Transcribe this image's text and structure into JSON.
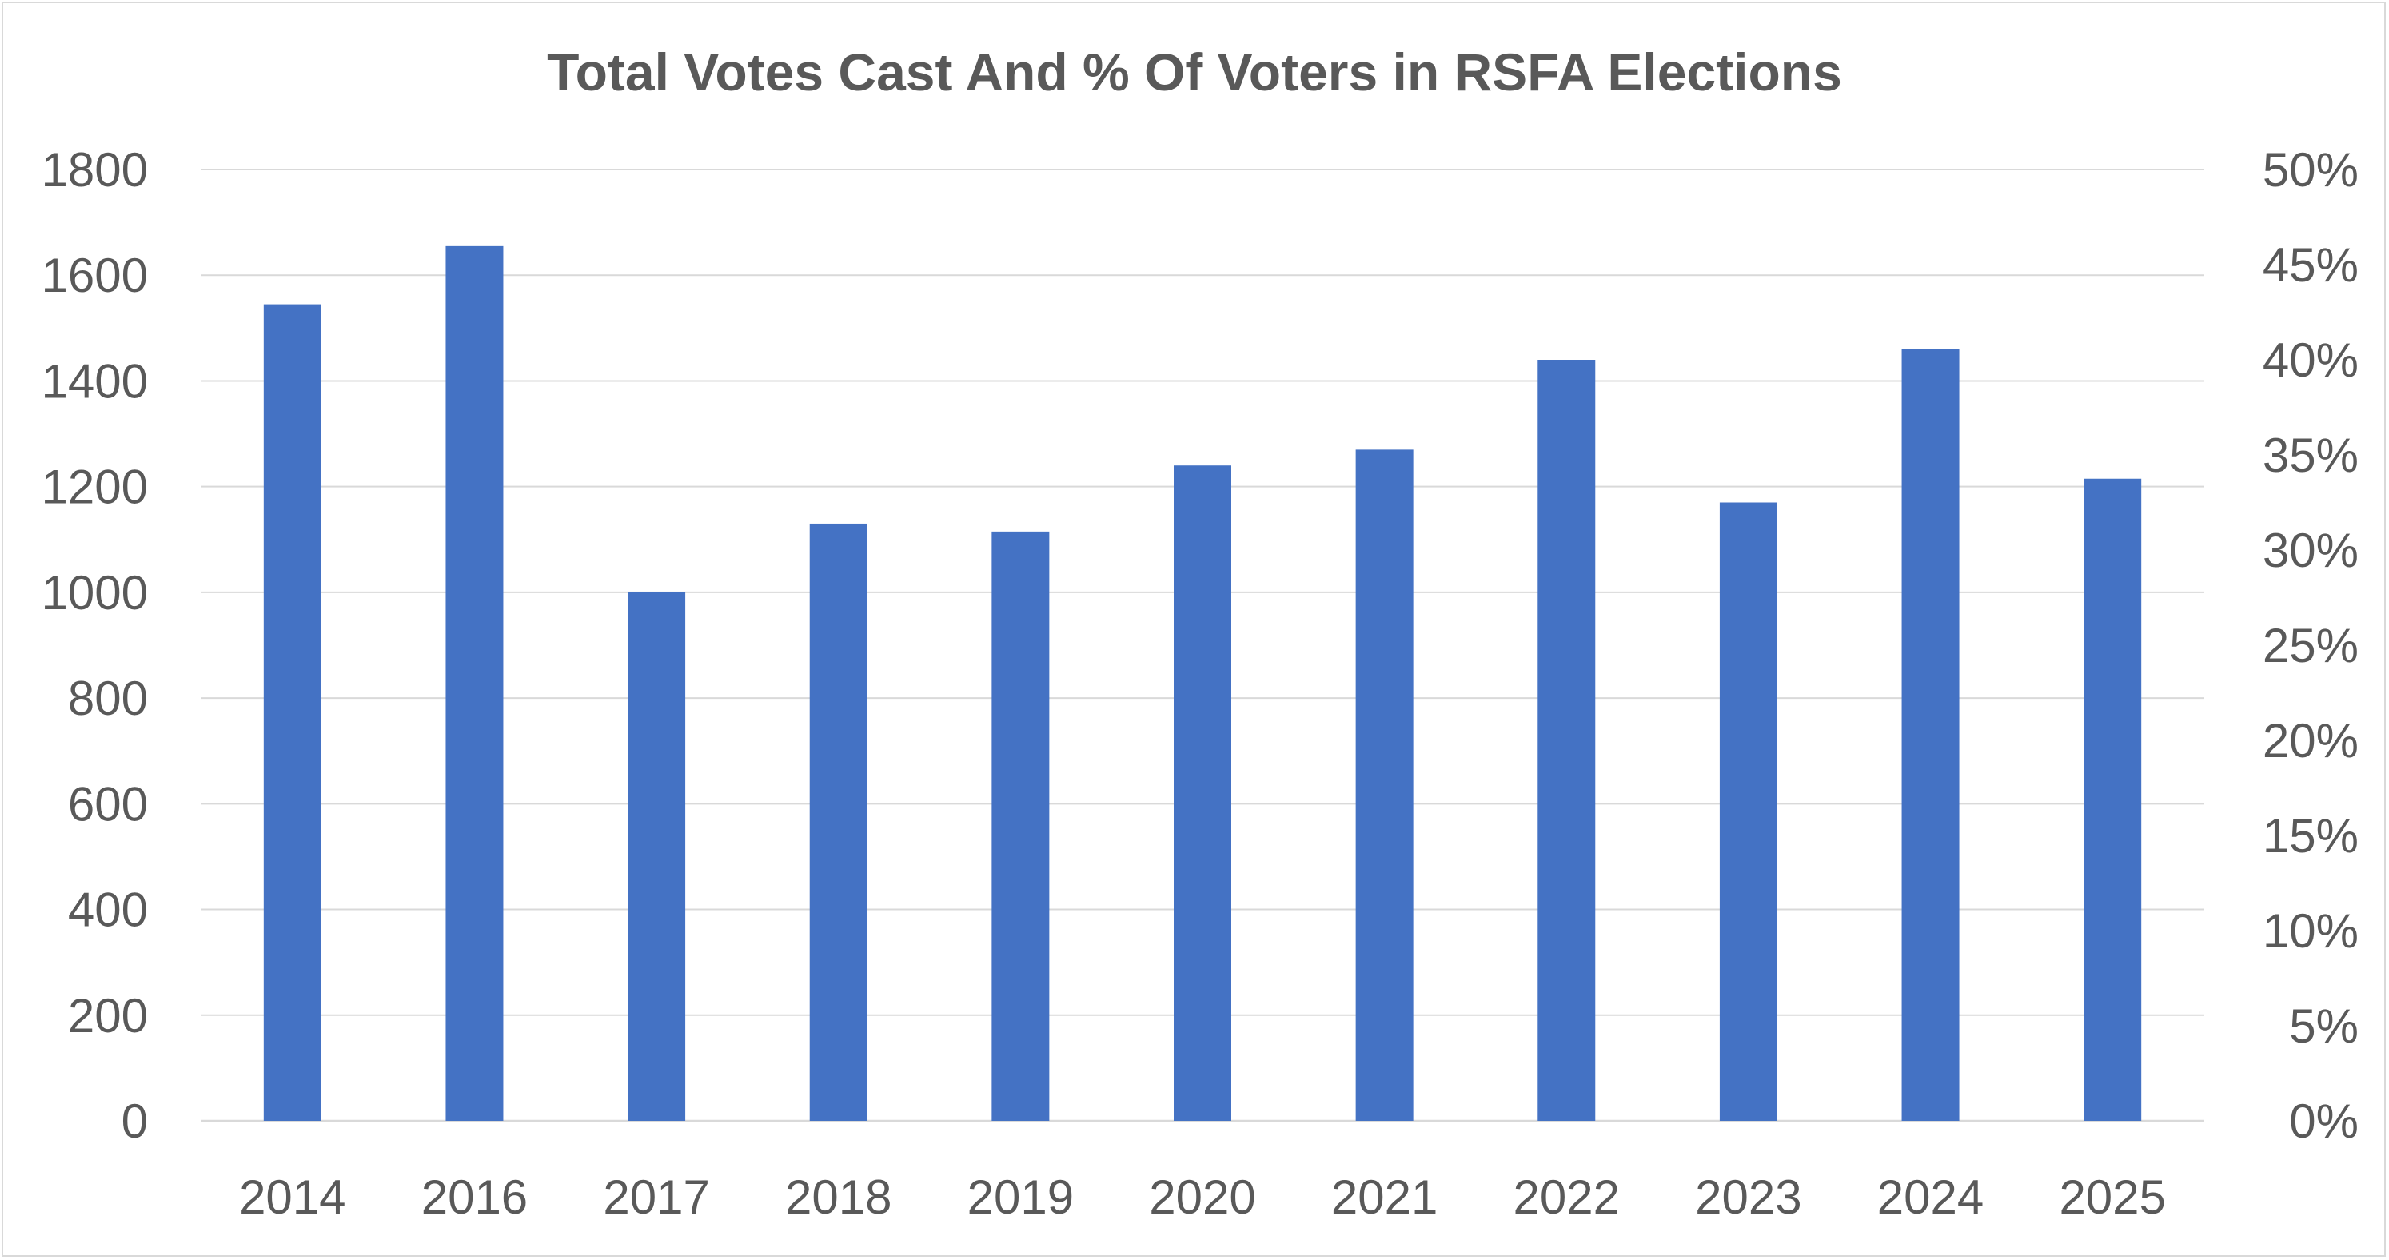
{
  "chart_data": {
    "type": "bar",
    "title": "Total Votes Cast And % Of Voters in RSFA Elections",
    "categories": [
      "2014",
      "2016",
      "2017",
      "2018",
      "2019",
      "2020",
      "2021",
      "2022",
      "2023",
      "2024",
      "2025"
    ],
    "series": [
      {
        "values": [
          1545,
          1655,
          1000,
          1130,
          1115,
          1240,
          1270,
          1440,
          1170,
          1460,
          1215
        ],
        "color": "#4472c4"
      }
    ],
    "ylim": [
      0,
      1800
    ],
    "yticks": [
      "0",
      "200",
      "400",
      "600",
      "800",
      "1000",
      "1200",
      "1400",
      "1600",
      "1800"
    ],
    "y2lim": [
      0,
      50
    ],
    "y2ticks": [
      "0%",
      "5%",
      "10%",
      "15%",
      "20%",
      "25%",
      "30%",
      "35%",
      "40%",
      "45%",
      "50%"
    ],
    "grid": true,
    "legend": "none"
  }
}
